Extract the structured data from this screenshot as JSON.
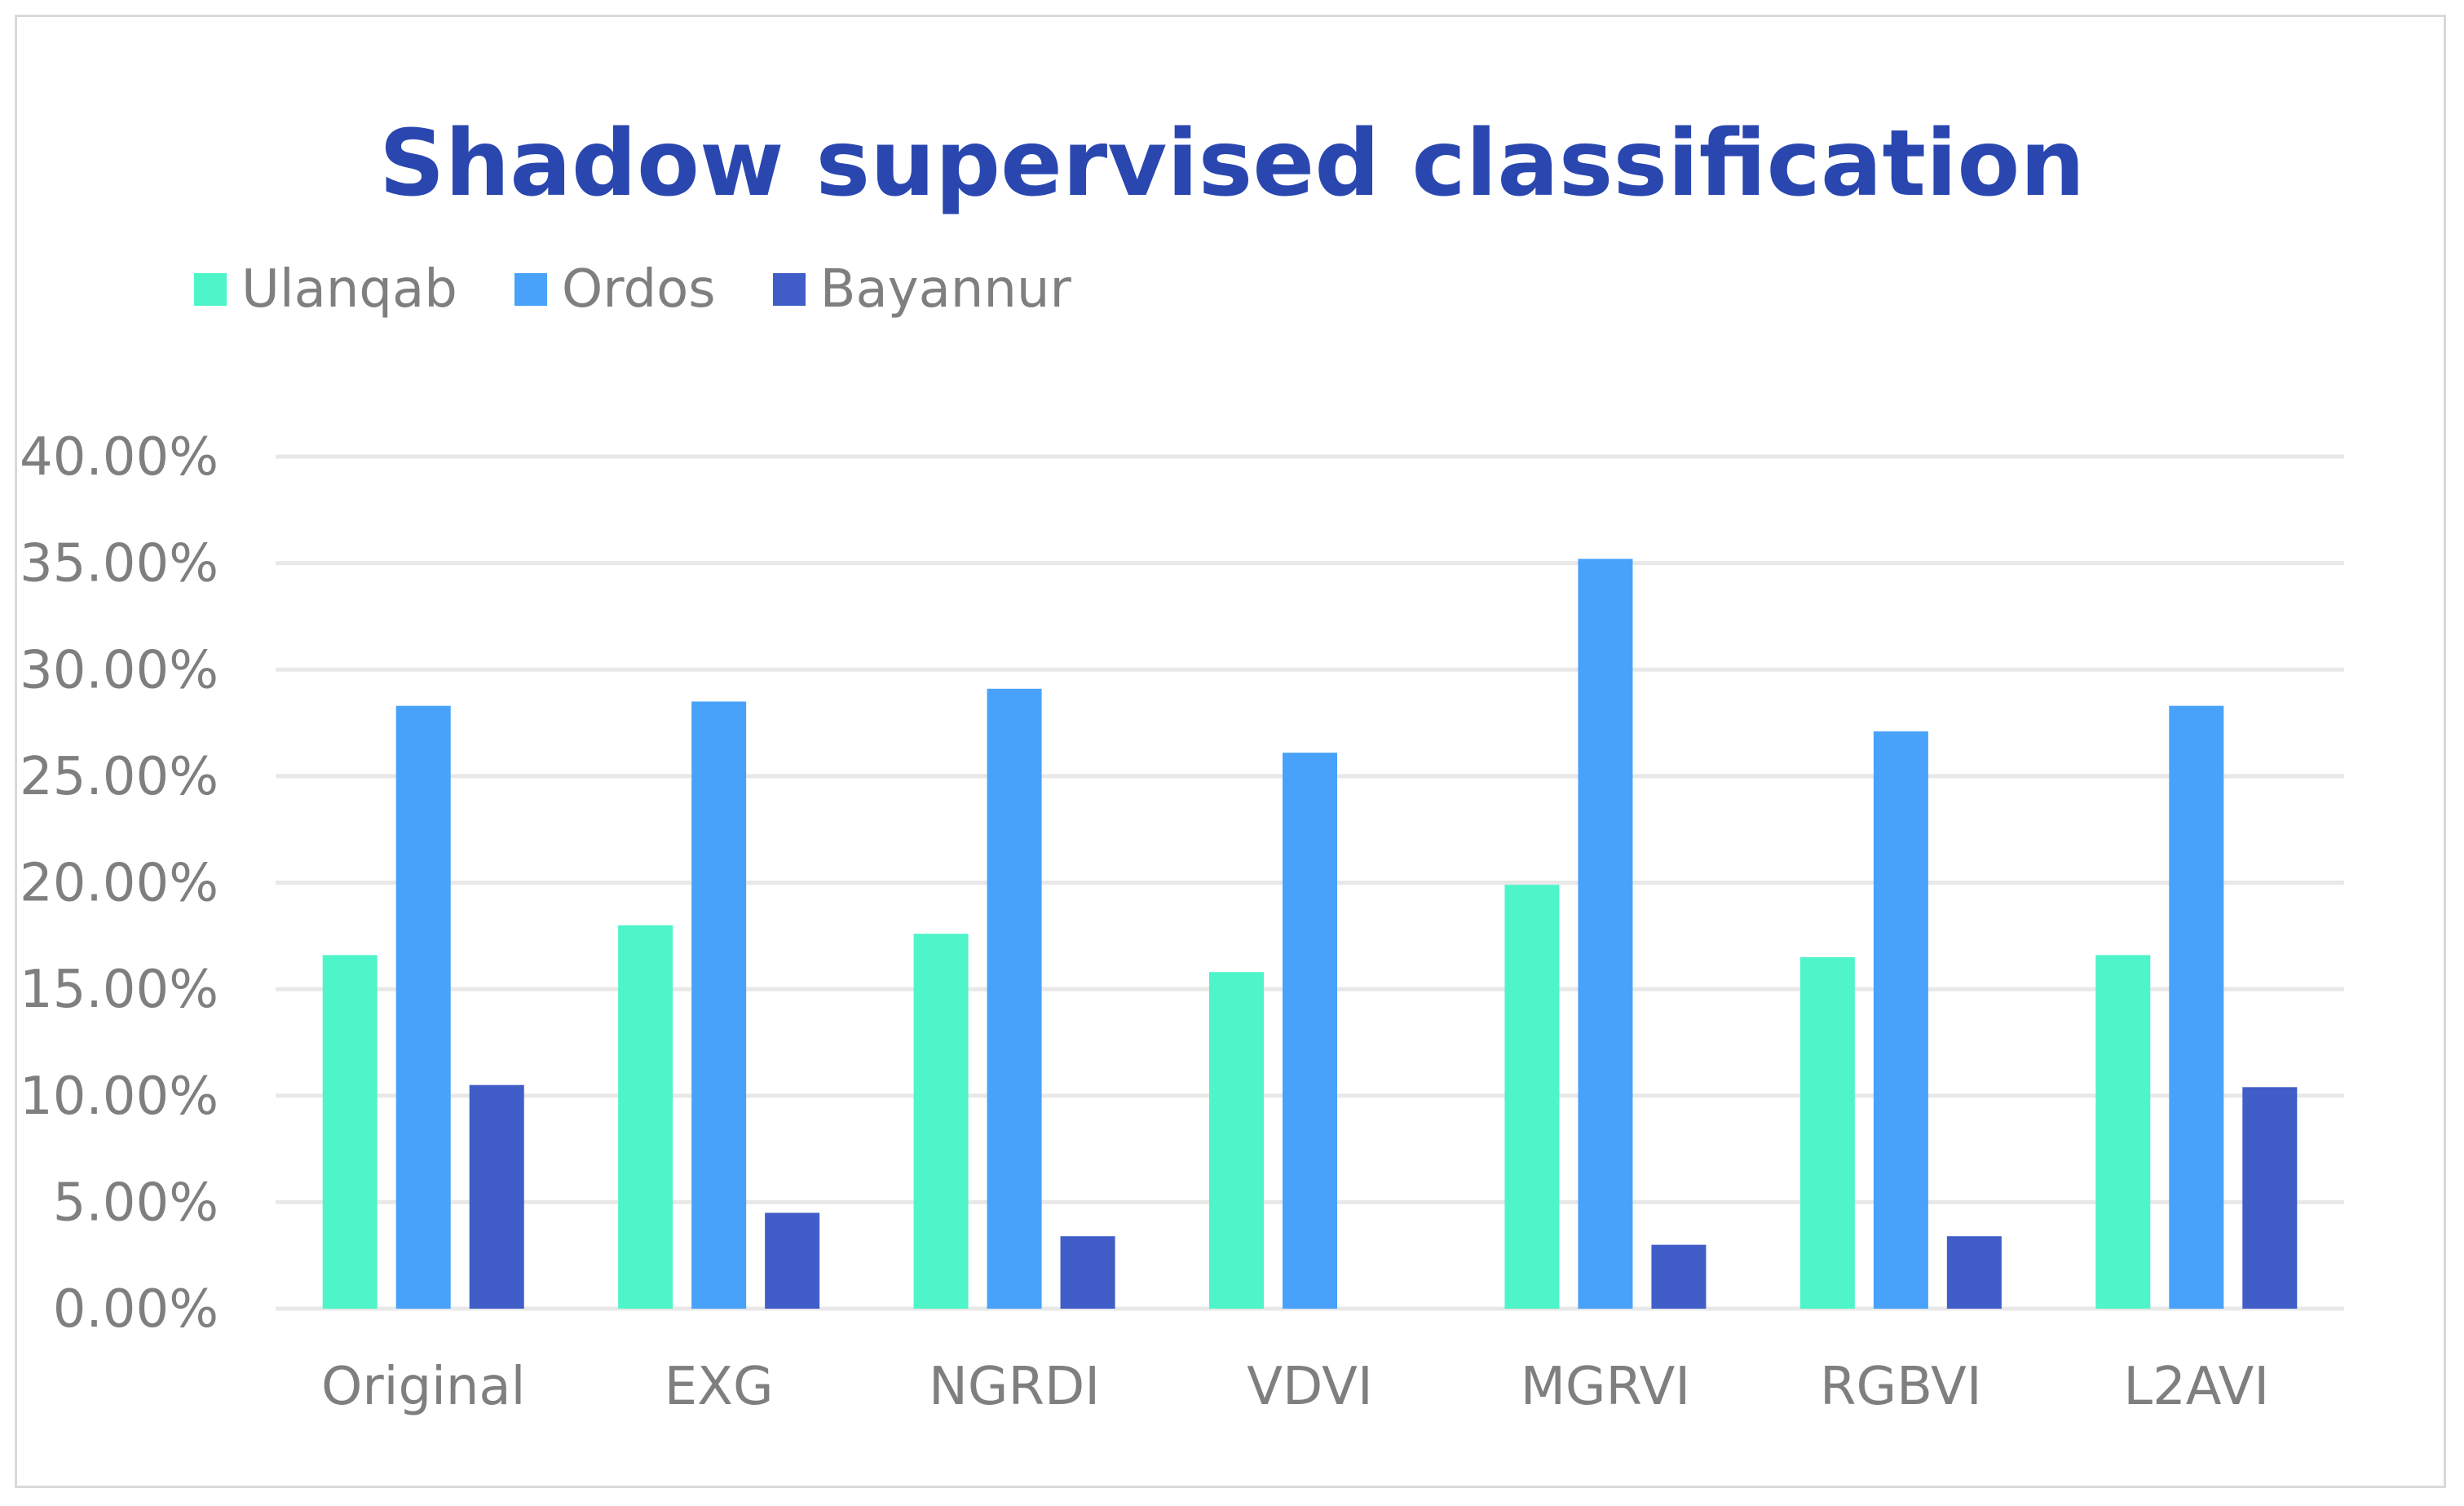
{
  "chart_data": {
    "type": "bar",
    "title": "Shadow supervised classification",
    "categories": [
      "Original",
      "EXG",
      "NGRDI",
      "VDVI",
      "MGRVI",
      "RGBVI",
      "L2AVI"
    ],
    "series": [
      {
        "name": "Ulanqab",
        "color": "#4ef5c8",
        "values": [
          16.6,
          18.0,
          17.6,
          15.8,
          19.9,
          16.5,
          16.6
        ]
      },
      {
        "name": "Ordos",
        "color": "#48a2fa",
        "values": [
          28.3,
          28.5,
          29.1,
          26.1,
          35.2,
          27.1,
          28.3
        ]
      },
      {
        "name": "Bayannur",
        "color": "#405dc8",
        "values": [
          10.5,
          4.5,
          3.4,
          0,
          3.0,
          3.4,
          10.4
        ]
      }
    ],
    "ylim": [
      0,
      40
    ],
    "yticks": [
      "0.00%",
      "5.00%",
      "10.00%",
      "15.00%",
      "20.00%",
      "25.00%",
      "30.00%",
      "35.00%",
      "40.00%"
    ],
    "xlabel": "",
    "ylabel": "",
    "grid": true,
    "legend_position": "top-left"
  }
}
